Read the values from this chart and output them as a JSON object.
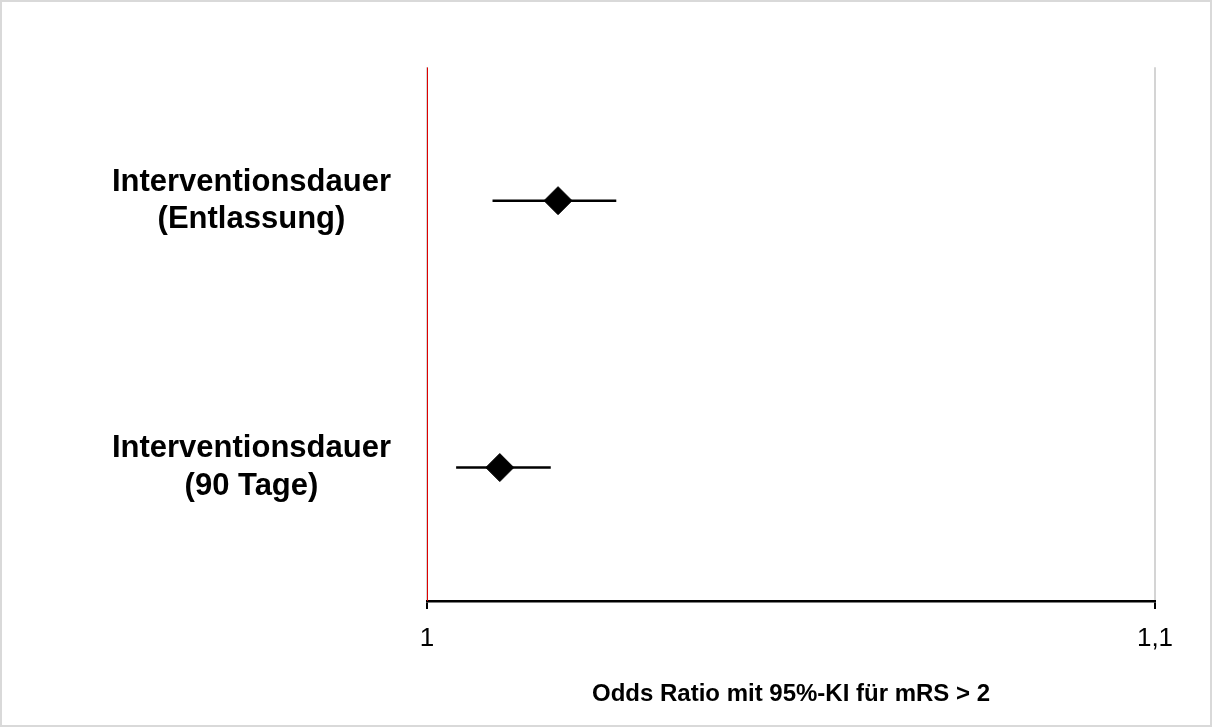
{
  "chart_data": {
    "type": "scatter",
    "orientation": "horizontal",
    "xlabel": "Odds Ratio mit 95%-KI für mRS > 2",
    "categories": [
      "Interventionsdauer (Entlassung)",
      "Interventionsdauer (90 Tage)"
    ],
    "values": [
      1.018,
      1.01
    ],
    "errors": [
      [
        1.009,
        1.026
      ],
      [
        1.004,
        1.017
      ]
    ],
    "color": "#000000",
    "marker": "diamond",
    "xlim": [
      1,
      1.1
    ],
    "xticks": [
      1,
      {
        "value": 1.1,
        "label": "1,1"
      }
    ],
    "grid": "x",
    "legend": false,
    "ref_lines": [
      {
        "axis": "x",
        "value": 1,
        "color": "#e00000"
      }
    ]
  }
}
